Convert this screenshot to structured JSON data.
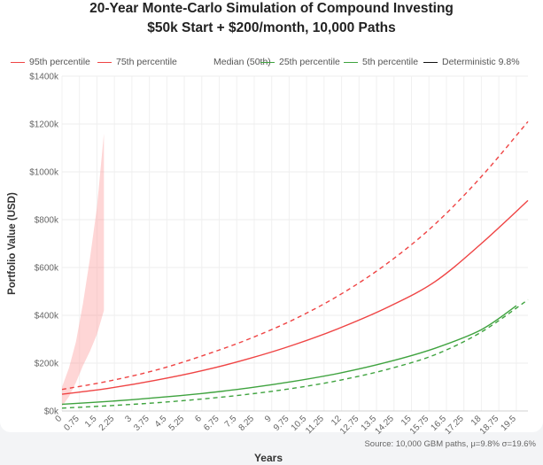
{
  "chart_data": {
    "type": "line",
    "title": "20-Year Monte-Carlo Simulation of Compound Investing",
    "subtitle": "$50k Start + $200/month, 10,000 Paths",
    "xlabel": "Years",
    "ylabel": "Portfolio Value (USD)",
    "ylim": [
      0,
      1400000
    ],
    "y_ticks": [
      0,
      200000,
      400000,
      600000,
      800000,
      1000000,
      1200000,
      1400000
    ],
    "y_tick_labels": [
      "$0k",
      "$200k",
      "$400k",
      "$600k",
      "$800k",
      "$1000k",
      "$1200k",
      "$1400k"
    ],
    "x_ticks": [
      "0",
      "0.75",
      "1.5",
      "2.25",
      "3",
      "3.75",
      "4.5",
      "5.25",
      "6",
      "6.75",
      "7.5",
      "8.25",
      "9",
      "9.75",
      "10.5",
      "11.25",
      "12",
      "12.75",
      "13.5",
      "14.25",
      "15",
      "15.75",
      "16.5",
      "17.25",
      "18",
      "18.75",
      "19.5"
    ],
    "grid": true,
    "legend_position": "top",
    "series": [
      {
        "name": "95th percentile",
        "color": "#ef4444",
        "style": "dashed",
        "x": [
          0,
          2,
          4,
          6,
          8,
          10,
          12,
          14,
          16,
          18,
          20
        ],
        "values": [
          90000,
          125000,
          170000,
          230000,
          300000,
          385000,
          490000,
          620000,
          780000,
          980000,
          1210000
        ]
      },
      {
        "name": "75th percentile",
        "color": "#ef4444",
        "style": "solid",
        "x": [
          0,
          2,
          4,
          6,
          8,
          10,
          12,
          14,
          16,
          18,
          20
        ],
        "values": [
          70000,
          95000,
          128000,
          168000,
          218000,
          278000,
          350000,
          435000,
          540000,
          700000,
          880000
        ]
      },
      {
        "name": "Median (50th)",
        "color": "#ffffff",
        "style": "solid",
        "x": [],
        "values": []
      },
      {
        "name": "25th percentile",
        "color": "#3fa33f",
        "style": "solid",
        "x": [
          0,
          2,
          4,
          6,
          8,
          10,
          12,
          14,
          16,
          18,
          19.5
        ],
        "values": [
          28000,
          40000,
          55000,
          73000,
          96000,
          125000,
          160000,
          205000,
          262000,
          340000,
          440000
        ]
      },
      {
        "name": "5th percentile",
        "color": "#3fa33f",
        "style": "dashed",
        "x": [
          0,
          2,
          4,
          6,
          8,
          10,
          12,
          14,
          16,
          18,
          20
        ],
        "values": [
          12000,
          22000,
          34000,
          50000,
          70000,
          96000,
          130000,
          175000,
          235000,
          330000,
          465000
        ]
      },
      {
        "name": "Deterministic 9.8%",
        "color": "#111111",
        "style": "solid",
        "x": [],
        "values": []
      }
    ],
    "simulated_paths_band": {
      "color": "#fca5a5",
      "x": [
        0,
        0.3,
        0.6,
        0.9,
        1.2,
        1.5,
        1.8
      ],
      "upper": [
        100000,
        180000,
        290000,
        450000,
        640000,
        850000,
        1160000
      ],
      "lower": [
        20000,
        60000,
        120000,
        190000,
        250000,
        320000,
        420000
      ]
    },
    "footnote": "Source: 10,000 GBM paths, μ=9.8% σ=19.6%"
  }
}
